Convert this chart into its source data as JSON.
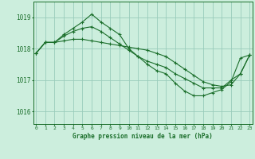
{
  "title": "Graphe pression niveau de la mer (hPa)",
  "background_color": "#cceedd",
  "grid_color": "#99ccbb",
  "line_color": "#1a6e2a",
  "x_ticks": [
    0,
    1,
    2,
    3,
    4,
    5,
    6,
    7,
    8,
    9,
    10,
    11,
    12,
    13,
    14,
    15,
    16,
    17,
    18,
    19,
    20,
    21,
    22,
    23
  ],
  "y_ticks": [
    1016,
    1017,
    1018,
    1019
  ],
  "ylim": [
    1015.6,
    1019.5
  ],
  "xlim": [
    -0.3,
    23.3
  ],
  "series": [
    [
      1017.85,
      1018.2,
      1018.2,
      1018.45,
      1018.65,
      1018.85,
      1019.1,
      1018.85,
      1018.65,
      1018.45,
      1018.0,
      1017.75,
      1017.5,
      1017.3,
      1017.2,
      1016.9,
      1016.65,
      1016.5,
      1016.5,
      1016.6,
      1016.7,
      1016.95,
      1017.7,
      1017.8
    ],
    [
      1017.85,
      1018.2,
      1018.2,
      1018.25,
      1018.3,
      1018.3,
      1018.25,
      1018.2,
      1018.15,
      1018.1,
      1018.05,
      1018.0,
      1017.95,
      1017.85,
      1017.75,
      1017.55,
      1017.35,
      1017.15,
      1016.95,
      1016.85,
      1016.8,
      1016.85,
      1017.2,
      1017.8
    ],
    [
      1017.85,
      1018.2,
      1018.2,
      1018.4,
      1018.55,
      1018.65,
      1018.7,
      1018.55,
      1018.35,
      1018.15,
      1017.95,
      1017.75,
      1017.6,
      1017.5,
      1017.4,
      1017.2,
      1017.05,
      1016.9,
      1016.75,
      1016.75,
      1016.75,
      1017.0,
      1017.2,
      1017.8
    ]
  ]
}
